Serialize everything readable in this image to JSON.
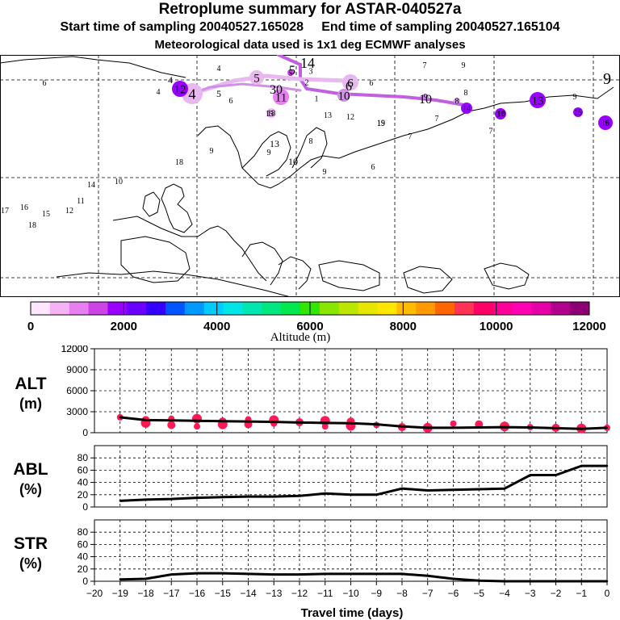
{
  "header": {
    "title": "Retroplume summary for ASTAR-040527a",
    "start_label": "Start time of sampling 20040527.165028",
    "end_label": "End time of sampling 20040527.165104",
    "met_label": "Meteorological data used is 1x1 deg ECMWF analyses"
  },
  "colorbar": {
    "label": "Altitude (m)",
    "ticks": [
      "0",
      "2000",
      "4000",
      "6000",
      "8000",
      "10000",
      "12000"
    ],
    "colors": [
      "#ffe6ff",
      "#f5b3f5",
      "#e680f0",
      "#cc44e6",
      "#9900ff",
      "#6a00ff",
      "#3300ff",
      "#0055ff",
      "#0099ff",
      "#00ccff",
      "#00e6e6",
      "#00e6b3",
      "#00e680",
      "#00e64d",
      "#33e600",
      "#88e600",
      "#bbe600",
      "#e6e600",
      "#ffe600",
      "#ffbb00",
      "#ff9900",
      "#ff6600",
      "#ff3355",
      "#ff0066",
      "#ff0099",
      "#ff00b3",
      "#e600a6",
      "#b3008c",
      "#8c0073"
    ]
  },
  "map": {
    "markers": [
      {
        "label": "4",
        "size": "large"
      },
      {
        "label": "5",
        "size": "medium"
      },
      {
        "label": "5",
        "size": "small"
      },
      {
        "label": "6",
        "size": "medium"
      },
      {
        "label": "10",
        "size": "medium"
      },
      {
        "label": "9",
        "size": "small"
      },
      {
        "label": "8",
        "size": "small"
      },
      {
        "label": "13",
        "size": "medium"
      },
      {
        "label": "12",
        "size": "medium"
      },
      {
        "label": "11",
        "size": "medium"
      },
      {
        "label": "14",
        "size": "small"
      },
      {
        "label": "15",
        "size": "small"
      },
      {
        "label": "16",
        "size": "small"
      },
      {
        "label": "17",
        "size": "small"
      },
      {
        "label": "18",
        "size": "small"
      },
      {
        "label": "19",
        "size": "small"
      },
      {
        "label": "7",
        "size": "small"
      },
      {
        "label": "3",
        "size": "small"
      },
      {
        "label": "2",
        "size": "small"
      },
      {
        "label": "1",
        "size": "small"
      }
    ],
    "extra_labels": [
      "14",
      "5",
      "30",
      "4",
      "4",
      "4",
      "5",
      "6",
      "6",
      "6",
      "9",
      "7",
      "10",
      "9",
      "15",
      "19",
      "7",
      "9",
      "8",
      "18",
      "10",
      "9",
      "6",
      "14",
      "10",
      "11",
      "17",
      "16",
      "15",
      "12",
      "18",
      "13",
      "7",
      "6",
      "8",
      "9",
      "9",
      "10",
      "12",
      "13",
      "9"
    ]
  },
  "chart_data": [
    {
      "type": "line",
      "panel": "ALT",
      "ylabel": "ALT (m)",
      "ylim": [
        0,
        12000
      ],
      "yticks": [
        0,
        3000,
        6000,
        9000,
        12000
      ],
      "x": [
        -19,
        -18,
        -17,
        -16,
        -15,
        -14,
        -13,
        -12,
        -11,
        -10,
        -9,
        -8,
        -7,
        -6,
        -5,
        -4,
        -3,
        -2,
        -1,
        0
      ],
      "values": [
        2200,
        1800,
        1750,
        1700,
        1650,
        1600,
        1550,
        1450,
        1400,
        1350,
        1200,
        900,
        700,
        700,
        750,
        800,
        750,
        650,
        550,
        700
      ],
      "scatter": {
        "x": [
          -19,
          -18,
          -18,
          -17,
          -17,
          -16,
          -16,
          -15,
          -15,
          -14,
          -14,
          -13,
          -13,
          -12,
          -11,
          -11,
          -10,
          -10,
          -9,
          -8,
          -7,
          -6,
          -5,
          -4,
          -3,
          -2,
          -1,
          0
        ],
        "y": [
          2200,
          1800,
          1400,
          2000,
          1100,
          2000,
          900,
          1600,
          1200,
          1900,
          1200,
          1800,
          1300,
          1500,
          1700,
          900,
          1600,
          1000,
          1100,
          800,
          700,
          1300,
          1200,
          900,
          800,
          700,
          600,
          700
        ]
      },
      "xlabel": "",
      "xlim": [
        -20,
        0
      ]
    },
    {
      "type": "line",
      "panel": "ABL",
      "ylabel": "ABL (%)",
      "ylim": [
        0,
        100
      ],
      "yticks": [
        0,
        20,
        40,
        60,
        80
      ],
      "x": [
        -19,
        -18,
        -17,
        -16,
        -15,
        -14,
        -13,
        -12,
        -11,
        -10,
        -9,
        -8,
        -7,
        -6,
        -5,
        -4,
        -3,
        -2,
        -1,
        0
      ],
      "values": [
        10,
        12,
        13,
        15,
        16,
        17,
        17,
        18,
        22,
        20,
        20,
        30,
        27,
        28,
        29,
        30,
        52,
        52,
        67,
        67
      ],
      "xlim": [
        -20,
        0
      ]
    },
    {
      "type": "line",
      "panel": "STR",
      "ylabel": "STR (%)",
      "ylim": [
        0,
        100
      ],
      "yticks": [
        0,
        20,
        40,
        60,
        80
      ],
      "x": [
        -19,
        -18,
        -17,
        -16,
        -15,
        -14,
        -13,
        -12,
        -11,
        -10,
        -9,
        -8,
        -7,
        -6,
        -5,
        -4,
        -3,
        -2,
        -1,
        0
      ],
      "values": [
        3,
        4,
        11,
        13,
        13,
        12,
        11,
        11,
        12,
        12,
        12,
        12,
        9,
        4,
        1,
        0,
        0,
        0,
        0,
        0
      ],
      "xlim": [
        -20,
        0
      ]
    }
  ],
  "xaxis": {
    "label": "Travel time (days)",
    "ticks": [
      "-20",
      "-19",
      "-18",
      "-17",
      "-16",
      "-15",
      "-14",
      "-13",
      "-12",
      "-11",
      "-10",
      "-9",
      "-8",
      "-7",
      "-6",
      "-5",
      "-4",
      "-3",
      "-2",
      "-1",
      "0"
    ]
  }
}
